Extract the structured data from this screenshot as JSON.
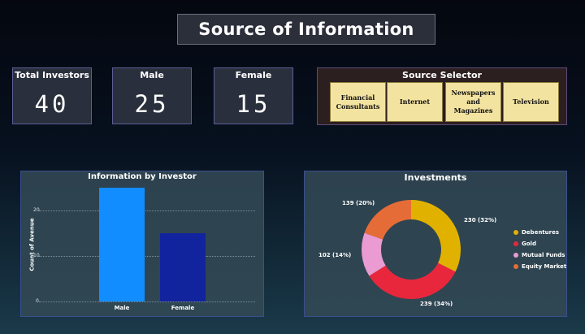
{
  "title": "Source of Information",
  "kpis": [
    {
      "label": "Total Investors",
      "value": "40"
    },
    {
      "label": "Male",
      "value": "25"
    },
    {
      "label": "Female",
      "value": "15"
    }
  ],
  "source_selector": {
    "label": "Source Selector",
    "options": [
      "Financial Consultants",
      "Internet",
      "Newspapers and Magazines",
      "Television"
    ]
  },
  "investor_chart": {
    "title": "Information by Investor",
    "ylabel": "Count of Avenue",
    "ticks": [
      "20",
      "10",
      "0"
    ],
    "colors": [
      "#118dff",
      "#12239e"
    ]
  },
  "investments_chart": {
    "title": "Investments",
    "labels": [
      "230 (32%)",
      "239 (34%)",
      "102 (14%)",
      "139 (20%)"
    ],
    "colors": [
      "#e1b100",
      "#e8273c",
      "#e99bd2",
      "#e66c37"
    ]
  },
  "chart_data": [
    {
      "type": "bar",
      "title": "Information by Investor",
      "xlabel": "",
      "ylabel": "Count of Avenue",
      "categories": [
        "Male",
        "Female"
      ],
      "values": [
        25,
        15
      ],
      "ylim": [
        0,
        27
      ],
      "grid": true
    },
    {
      "type": "pie",
      "title": "Investments",
      "categories": [
        "Debentures",
        "Gold",
        "Mutual Funds",
        "Equity Market"
      ],
      "values": [
        230,
        239,
        102,
        139
      ],
      "percent": [
        32,
        34,
        14,
        20
      ],
      "legend": "right"
    }
  ]
}
